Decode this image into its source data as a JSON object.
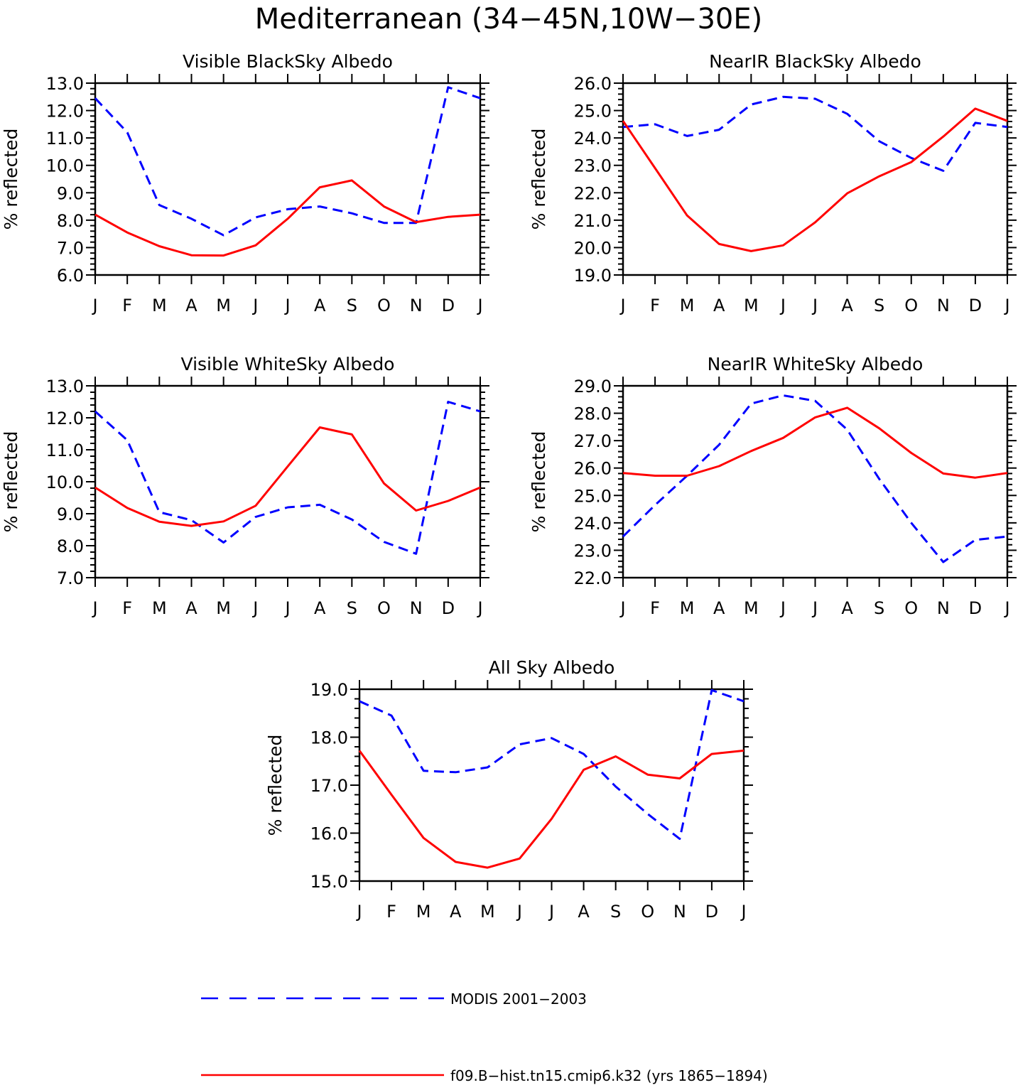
{
  "figure": {
    "title": "Mediterranean (34−45N,10W−30E)"
  },
  "legend": [
    {
      "label": "MODIS 2001−2003",
      "color": "#0000ff",
      "dash": true
    },
    {
      "label": "f09.B−hist.tn15.cmip6.k32 (yrs 1865−1894)",
      "color": "#ff0000",
      "dash": false
    }
  ],
  "chart_data": [
    {
      "type": "line",
      "title": "Visible BlackSky Albedo",
      "ylabel": "% reflected",
      "ylim": [
        6.0,
        13.0
      ],
      "yticks": [
        "6.0",
        "7.0",
        "8.0",
        "9.0",
        "10.0",
        "11.0",
        "12.0",
        "13.0"
      ],
      "x": [
        "J",
        "F",
        "M",
        "A",
        "M",
        "J",
        "J",
        "A",
        "S",
        "O",
        "N",
        "D",
        "J"
      ],
      "series": [
        {
          "name": "MODIS 2001−2003",
          "color": "#0000ff",
          "dash": true,
          "values": [
            12.45,
            11.2,
            8.55,
            8.05,
            7.45,
            8.1,
            8.4,
            8.5,
            8.25,
            7.9,
            7.9,
            12.85,
            12.45
          ]
        },
        {
          "name": "f09.B−hist.tn15.cmip6.k32 (yrs 1865−1894)",
          "color": "#ff0000",
          "dash": false,
          "values": [
            8.2,
            7.55,
            7.05,
            6.72,
            6.71,
            7.08,
            8.05,
            9.2,
            9.45,
            8.5,
            7.93,
            8.12,
            8.2
          ]
        }
      ]
    },
    {
      "type": "line",
      "title": "NearIR BlackSky Albedo",
      "ylabel": "% reflected",
      "ylim": [
        19.0,
        26.0
      ],
      "yticks": [
        "19.0",
        "20.0",
        "21.0",
        "22.0",
        "23.0",
        "24.0",
        "25.0",
        "26.0"
      ],
      "x": [
        "J",
        "F",
        "M",
        "A",
        "M",
        "J",
        "J",
        "A",
        "S",
        "O",
        "N",
        "D",
        "J"
      ],
      "series": [
        {
          "name": "MODIS 2001−2003",
          "color": "#0000ff",
          "dash": true,
          "values": [
            24.4,
            24.5,
            24.07,
            24.3,
            25.22,
            25.5,
            25.43,
            24.88,
            23.88,
            23.27,
            22.8,
            24.55,
            24.4
          ]
        },
        {
          "name": "f09.B−hist.tn15.cmip6.k32 (yrs 1865−1894)",
          "color": "#ff0000",
          "dash": false,
          "values": [
            24.62,
            22.9,
            21.17,
            20.13,
            19.87,
            20.08,
            20.92,
            21.98,
            22.6,
            23.12,
            24.05,
            25.07,
            24.62
          ]
        }
      ]
    },
    {
      "type": "line",
      "title": "Visible WhiteSky Albedo",
      "ylabel": "% reflected",
      "ylim": [
        7.0,
        13.0
      ],
      "yticks": [
        "7.0",
        "8.0",
        "9.0",
        "10.0",
        "11.0",
        "12.0",
        "13.0"
      ],
      "x": [
        "J",
        "F",
        "M",
        "A",
        "M",
        "J",
        "J",
        "A",
        "S",
        "O",
        "N",
        "D",
        "J"
      ],
      "series": [
        {
          "name": "MODIS 2001−2003",
          "color": "#0000ff",
          "dash": true,
          "values": [
            12.2,
            11.3,
            9.05,
            8.8,
            8.1,
            8.9,
            9.2,
            9.28,
            8.82,
            8.12,
            7.75,
            12.5,
            12.2
          ]
        },
        {
          "name": "f09.B−hist.tn15.cmip6.k32 (yrs 1865−1894)",
          "color": "#ff0000",
          "dash": false,
          "values": [
            9.82,
            9.18,
            8.75,
            8.62,
            8.76,
            9.25,
            10.48,
            11.7,
            11.48,
            9.95,
            9.1,
            9.4,
            9.82
          ]
        }
      ]
    },
    {
      "type": "line",
      "title": "NearIR WhiteSky Albedo",
      "ylabel": "% reflected",
      "ylim": [
        22.0,
        29.0
      ],
      "yticks": [
        "22.0",
        "23.0",
        "24.0",
        "25.0",
        "26.0",
        "27.0",
        "28.0",
        "29.0"
      ],
      "x": [
        "J",
        "F",
        "M",
        "A",
        "M",
        "J",
        "J",
        "A",
        "S",
        "O",
        "N",
        "D",
        "J"
      ],
      "series": [
        {
          "name": "MODIS 2001−2003",
          "color": "#0000ff",
          "dash": true,
          "values": [
            23.5,
            24.65,
            25.72,
            26.85,
            28.35,
            28.65,
            28.45,
            27.4,
            25.6,
            24.0,
            22.57,
            23.38,
            23.5
          ]
        },
        {
          "name": "f09.B−hist.tn15.cmip6.k32 (yrs 1865−1894)",
          "color": "#ff0000",
          "dash": false,
          "values": [
            25.82,
            25.72,
            25.72,
            26.07,
            26.62,
            27.1,
            27.85,
            28.2,
            27.45,
            26.55,
            25.8,
            25.65,
            25.82
          ]
        }
      ]
    },
    {
      "type": "line",
      "title": "All Sky Albedo",
      "ylabel": "% reflected",
      "ylim": [
        15.0,
        19.0
      ],
      "yticks": [
        "15.0",
        "16.0",
        "17.0",
        "18.0",
        "19.0"
      ],
      "x": [
        "J",
        "F",
        "M",
        "A",
        "M",
        "J",
        "J",
        "A",
        "S",
        "O",
        "N",
        "D",
        "J"
      ],
      "series": [
        {
          "name": "MODIS 2001−2003",
          "color": "#0000ff",
          "dash": true,
          "values": [
            18.75,
            18.45,
            17.3,
            17.27,
            17.37,
            17.85,
            17.98,
            17.65,
            16.97,
            16.4,
            15.88,
            18.98,
            18.75
          ]
        },
        {
          "name": "f09.B−hist.tn15.cmip6.k32 (yrs 1865−1894)",
          "color": "#ff0000",
          "dash": false,
          "values": [
            17.72,
            16.8,
            15.9,
            15.4,
            15.28,
            15.47,
            16.3,
            17.32,
            17.6,
            17.22,
            17.14,
            17.65,
            17.72
          ]
        }
      ]
    }
  ]
}
